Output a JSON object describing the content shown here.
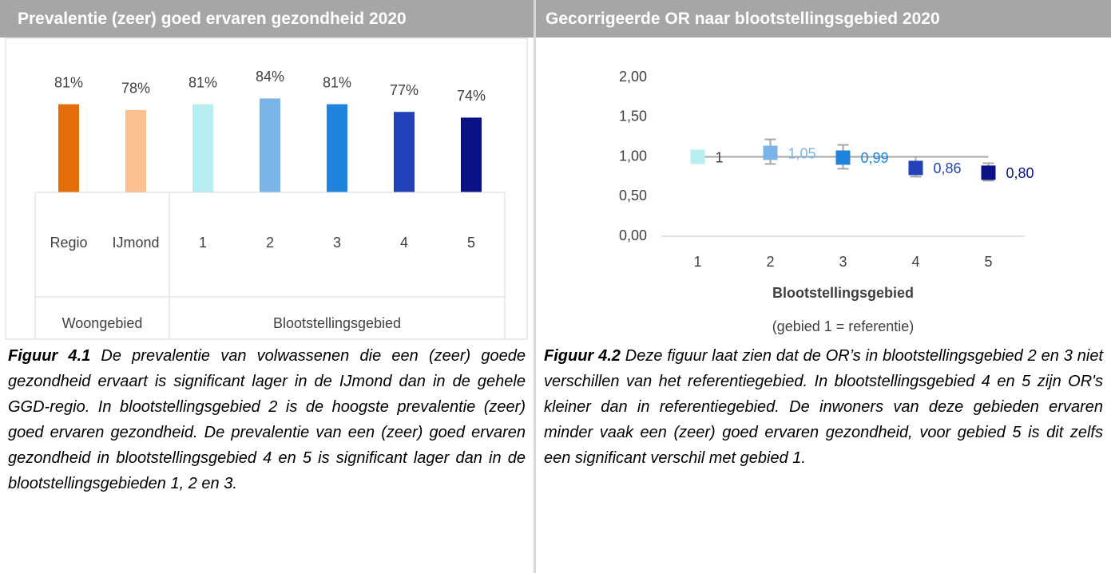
{
  "chart_data": [
    {
      "type": "bar",
      "title": "Prevalentie (zeer) goed ervaren gezondheid 2020",
      "categories": [
        "Regio",
        "IJmond",
        "1",
        "2",
        "3",
        "4",
        "5"
      ],
      "groups": [
        {
          "label": "Woongebied",
          "size": 2
        },
        {
          "label": "Blootstellingsgebied",
          "size": 5
        }
      ],
      "values": [
        81,
        78,
        81,
        84,
        81,
        77,
        74
      ],
      "value_labels": [
        "81%",
        "78%",
        "81%",
        "84%",
        "81%",
        "77%",
        "74%"
      ],
      "colors": [
        "#e46c0a",
        "#fac090",
        "#b7eef0",
        "#7ab4e8",
        "#1f83dd",
        "#2341b8",
        "#0b1187"
      ],
      "ylim": [
        35,
        90
      ],
      "caption_label": "Figuur 4.1",
      "caption": "De prevalentie van volwassenen die een (zeer) goede gezondheid ervaart is significant lager in de IJmond dan in de gehele GGD-regio. In blootstellingsgebied 2 is de hoogste prevalentie (zeer) goed ervaren gezondheid. De prevalentie van een (zeer) goed ervaren gezondheid in blootstellingsgebied 4 en 5 is significant lager dan in de blootstellingsgebieden 1, 2 en 3."
    },
    {
      "type": "scatter",
      "title": "Gecorrigeerde OR naar blootstellingsgebied 2020",
      "x": [
        1,
        2,
        3,
        4,
        5
      ],
      "values": [
        1,
        1.05,
        0.99,
        0.86,
        0.8
      ],
      "value_labels": [
        "1",
        "1,05",
        "0,99",
        "0,86",
        "0,80"
      ],
      "upper": [
        null,
        1.22,
        1.15,
        1.0,
        0.92
      ],
      "lower": [
        null,
        0.91,
        0.85,
        0.75,
        0.7
      ],
      "colors": [
        "#b7eef0",
        "#7ab4e8",
        "#1f83dd",
        "#2341b8",
        "#0b1187"
      ],
      "reference_line": 1,
      "xlim": [
        0.5,
        5.5
      ],
      "xticks": [
        1,
        2,
        3,
        4,
        5
      ],
      "ylim": [
        0,
        2
      ],
      "yticks": [
        {
          "value": 0,
          "label": "0,00"
        },
        {
          "value": 0.5,
          "label": "0,50"
        },
        {
          "value": 1,
          "label": "1,00"
        },
        {
          "value": 1.5,
          "label": "1,50"
        },
        {
          "value": 2,
          "label": "2,00"
        }
      ],
      "xlabel": "Blootstellingsgebied",
      "note": "(gebied 1 = referentie)",
      "caption_label": "Figuur 4.2",
      "caption": "Deze figuur laat zien dat de OR’s in blootstellingsgebied 2 en 3 niet verschillen van het referentiegebied. In blootstellingsgebied 4 en 5 zijn OR's kleiner dan in referentiegebied. De inwoners van deze gebieden ervaren minder vaak een (zeer) goed ervaren gezondheid, voor gebied 5 is dit zelfs een significant verschil met gebied 1."
    }
  ]
}
